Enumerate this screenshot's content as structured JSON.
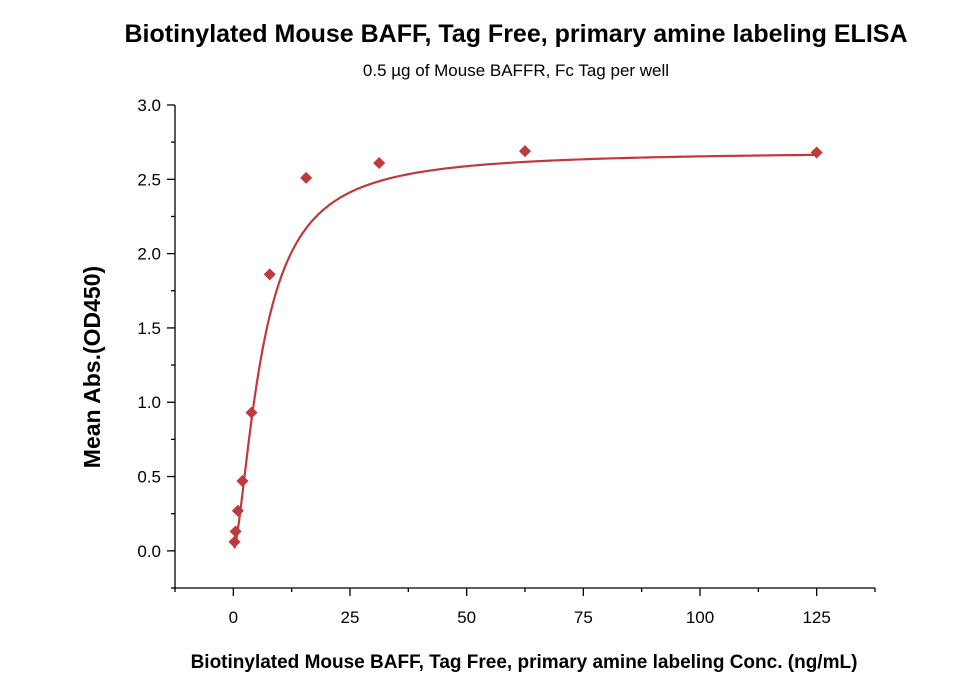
{
  "chart_data": {
    "type": "scatter",
    "title": "Biotinylated Mouse BAFF, Tag Free, primary amine labeling ELISA",
    "subtitle": "0.5 µg of Mouse BAFFR, Fc Tag per well",
    "xlabel": "Biotinylated Mouse BAFF, Tag Free, primary amine labeling Conc. (ng/mL)",
    "ylabel": "Mean Abs.(OD450)",
    "xlim": [
      -12.5,
      137.5
    ],
    "ylim": [
      -0.25,
      3.0
    ],
    "x_ticks": [
      0,
      25,
      50,
      75,
      100,
      125
    ],
    "x_tick_labels": [
      "0",
      "25",
      "50",
      "75",
      "100",
      "125"
    ],
    "y_ticks": [
      0.0,
      0.5,
      1.0,
      1.5,
      2.0,
      2.5,
      3.0
    ],
    "y_tick_labels": [
      "0.0",
      "0.5",
      "1.0",
      "1.5",
      "2.0",
      "2.5",
      "3.0"
    ],
    "grid": false,
    "series": [
      {
        "color": "#c0393b",
        "marker": "diamond",
        "fit": "4-parameter logistic curve",
        "points": [
          {
            "x": 0.244,
            "y": 0.06
          },
          {
            "x": 0.488,
            "y": 0.13
          },
          {
            "x": 0.977,
            "y": 0.27
          },
          {
            "x": 1.95,
            "y": 0.47
          },
          {
            "x": 3.9,
            "y": 0.93
          },
          {
            "x": 7.8,
            "y": 1.86
          },
          {
            "x": 15.6,
            "y": 2.51
          },
          {
            "x": 31.25,
            "y": 2.61
          },
          {
            "x": 62.5,
            "y": 2.69
          },
          {
            "x": 125,
            "y": 2.68
          }
        ]
      }
    ]
  }
}
